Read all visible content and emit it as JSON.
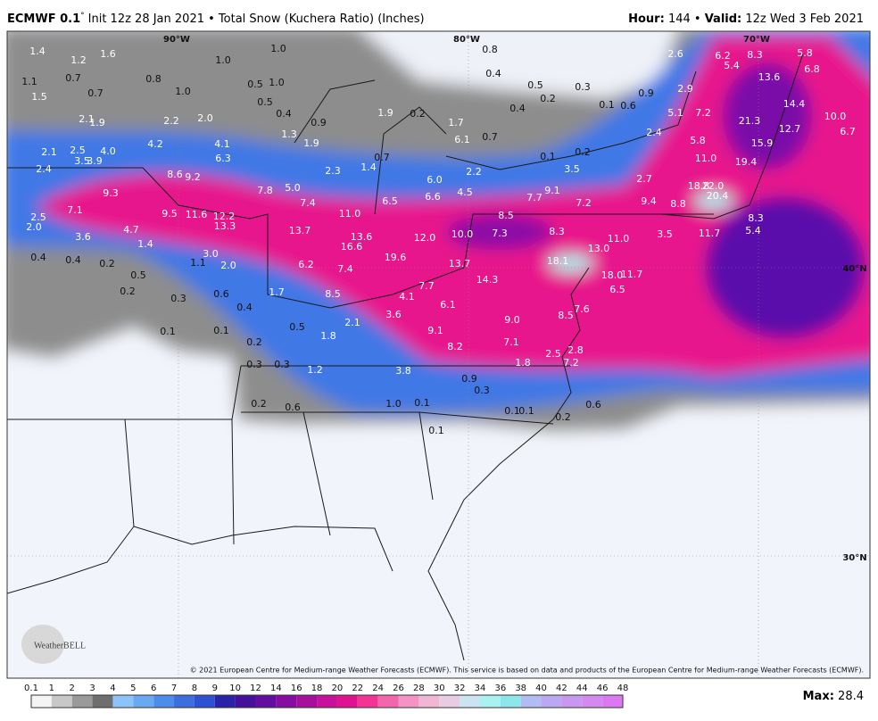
{
  "header": {
    "model": "ECMWF 0.1",
    "degree": "°",
    "title": "Init 12z 28 Jan 2021 • Total Snow (Kuchera Ratio) (Inches)",
    "hour_label": "Hour:",
    "hour": "144 •",
    "valid_label": "Valid:",
    "valid": "12z Wed 3 Feb 2021"
  },
  "map": {
    "graticule_labels": [
      "90°W",
      "80°W",
      "70°W",
      "40°N",
      "30°N"
    ],
    "snow_labels": [
      "1.4",
      "1.2",
      "1.6",
      "1.0",
      "0.8",
      "0.4",
      "2.6",
      "6.2",
      "8.3",
      "5.4",
      "5.8",
      "6.8",
      "1.1",
      "0.7",
      "0.8",
      "1.0",
      "0.5",
      "1.0",
      "1.0",
      "0.7",
      "1.5",
      "0.5",
      "0.3",
      "13.6",
      "0.9",
      "2.9",
      "0.5",
      "0.4",
      "0.2",
      "0.4",
      "0.1",
      "0.6",
      "2.1",
      "1.9",
      "2.2",
      "2.0",
      "0.9",
      "1.9",
      "0.2",
      "1.7",
      "5.1",
      "7.2",
      "21.3",
      "14.4",
      "10.0",
      "12.7",
      "6.7",
      "1.3",
      "1.9",
      "6.1",
      "0.7",
      "2.4",
      "5.8",
      "15.9",
      "2.1",
      "2.5",
      "4.0",
      "4.2",
      "4.1",
      "6.3",
      "0.7",
      "11.0",
      "19.4",
      "0.1",
      "0.2",
      "3.5",
      "3.9",
      "2.4",
      "1.4",
      "2.3",
      "3.5",
      "2.2",
      "6.0",
      "2.7",
      "8.6",
      "9.2",
      "7.8",
      "5.0",
      "18.8",
      "22.0",
      "20.4",
      "9.3",
      "4.5",
      "6.6",
      "7.7",
      "9.1",
      "6.5",
      "7.4",
      "7.2",
      "9.4",
      "8.8",
      "7.1",
      "9.5",
      "11.6",
      "12.2",
      "11.0",
      "8.5",
      "8.3",
      "2.5",
      "2.0",
      "13.3",
      "13.7",
      "13.6",
      "12.0",
      "10.0",
      "7.3",
      "8.3",
      "3.5",
      "11.7",
      "5.4",
      "11.0",
      "4.7",
      "3.6",
      "1.4",
      "16.6",
      "13.0",
      "0.4",
      "0.4",
      "0.2",
      "3.0",
      "1.1",
      "2.0",
      "6.2",
      "19.6",
      "13.7",
      "18.1",
      "7.4",
      "18.0",
      "11.7",
      "0.5",
      "14.3",
      "0.2",
      "1.7",
      "0.3",
      "0.6",
      "8.5",
      "7.7",
      "4.1",
      "6.1",
      "6.5",
      "7.6",
      "0.4",
      "3.6",
      "8.5",
      "9.0",
      "2.1",
      "0.5",
      "9.1",
      "0.1",
      "0.1",
      "1.8",
      "7.1",
      "0.2",
      "8.2",
      "2.8",
      "2.5",
      "0.3",
      "0.3",
      "1.8",
      "7.2",
      "1.2",
      "3.8",
      "0.9",
      "0.3",
      "1.0",
      "0.1",
      "0.2",
      "0.6",
      "0.6",
      "0.1",
      "0.1",
      "0.2",
      "0.1"
    ],
    "watermark": "WeatherBELL",
    "credit": "© 2021 European Centre for Medium-range Weather Forecasts (ECMWF). This service is based on data and products of the European Centre for Medium-range Weather Forecasts (ECMWF)."
  },
  "legend": {
    "ticks": [
      0.1,
      1,
      2,
      3,
      4,
      5,
      6,
      7,
      8,
      9,
      10,
      12,
      14,
      16,
      18,
      20,
      22,
      24,
      26,
      28,
      30,
      32,
      34,
      36,
      38,
      40,
      42,
      44,
      46,
      48
    ],
    "colors": [
      "#f4f4f4",
      "#c8c8c8",
      "#9a9a9a",
      "#6e6e6e",
      "#8cc4fa",
      "#6aa8f2",
      "#4c8cea",
      "#3c6ee0",
      "#2e50d2",
      "#2a22a8",
      "#46109e",
      "#640ca0",
      "#860ca2",
      "#a80e9e",
      "#c8109a",
      "#e01292",
      "#f23494",
      "#f466ac",
      "#f494c4",
      "#f0b6d4",
      "#e8cce2",
      "#cce4f2",
      "#a8f2f2",
      "#8ce6ec",
      "#b0bcf2",
      "#bca8f2",
      "#c898f0",
      "#d488f0",
      "#dc78f0"
    ],
    "max_label": "Max:",
    "max": "28.4"
  }
}
